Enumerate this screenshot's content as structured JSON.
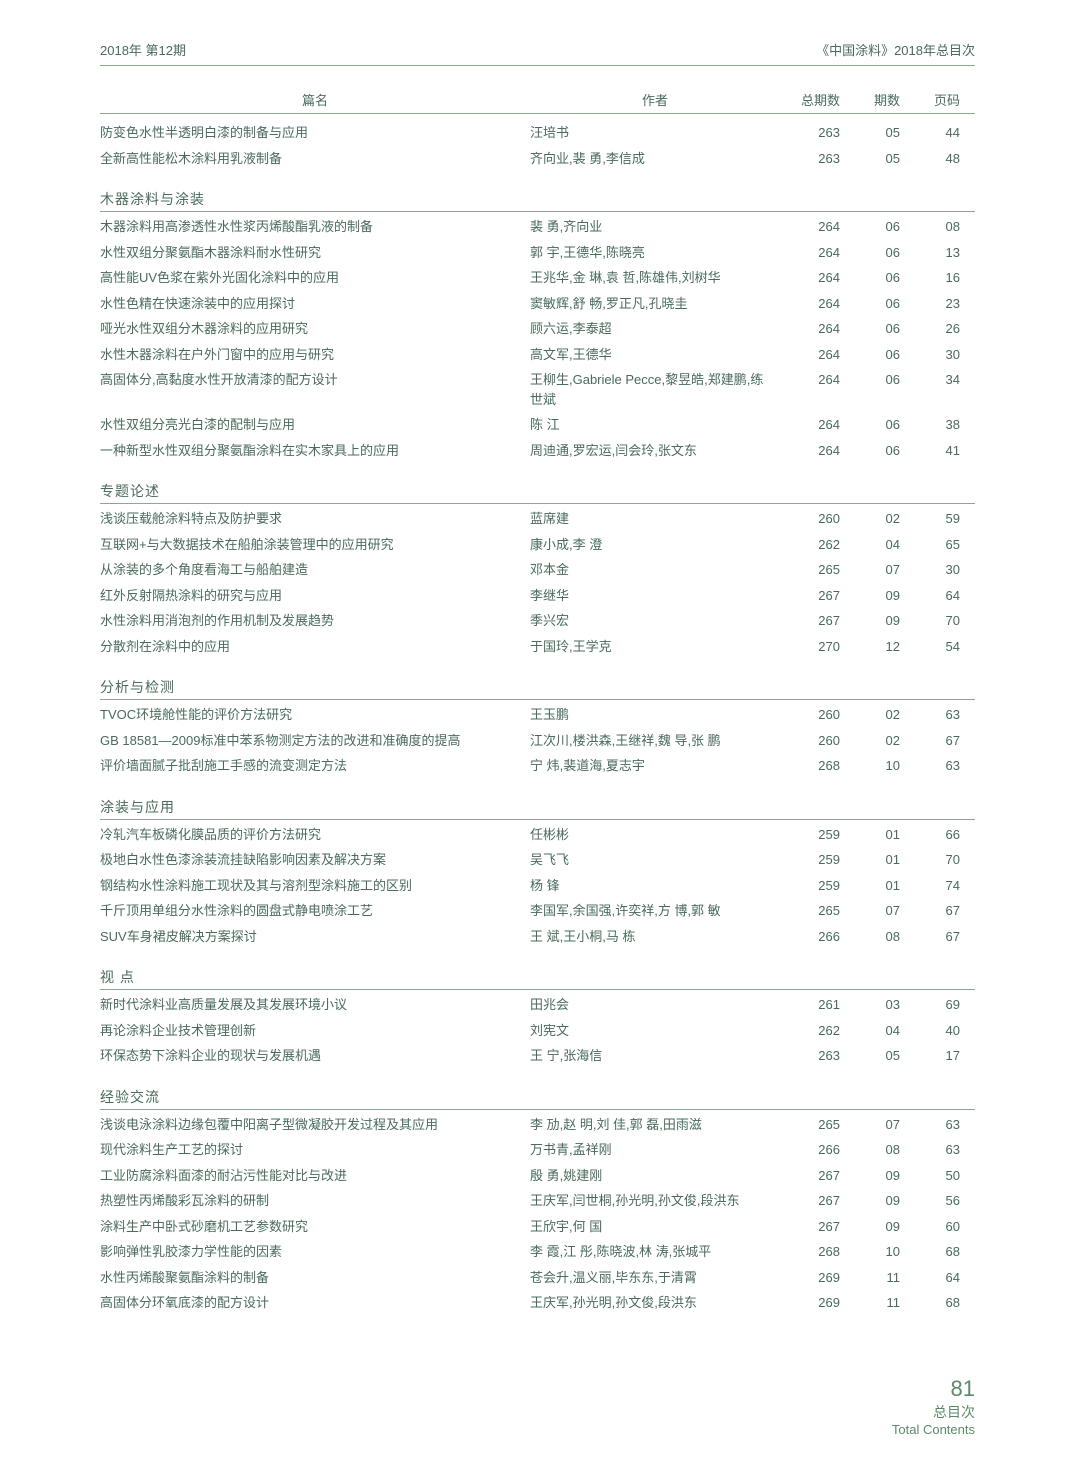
{
  "header": {
    "left": "2018年 第12期",
    "right": "《中国涂料》2018年总目次"
  },
  "columns": {
    "title": "篇名",
    "author": "作者",
    "total": "总期数",
    "issue": "期数",
    "page": "页码"
  },
  "sections": [
    {
      "name": null,
      "rows": [
        {
          "title": "防变色水性半透明白漆的制备与应用",
          "author": "汪培书",
          "total": "263",
          "issue": "05",
          "page": "44"
        },
        {
          "title": "全新高性能松木涂料用乳液制备",
          "author": "齐向业,裴 勇,李信成",
          "total": "263",
          "issue": "05",
          "page": "48"
        }
      ]
    },
    {
      "name": "木器涂料与涂装",
      "rows": [
        {
          "title": "木器涂料用高渗透性水性浆丙烯酸酯乳液的制备",
          "author": "裴 勇,齐向业",
          "total": "264",
          "issue": "06",
          "page": "08"
        },
        {
          "title": "水性双组分聚氨酯木器涂料耐水性研究",
          "author": "郭 宇,王德华,陈晓亮",
          "total": "264",
          "issue": "06",
          "page": "13"
        },
        {
          "title": "高性能UV色浆在紫外光固化涂料中的应用",
          "author": "王兆华,金 琳,袁 哲,陈雄伟,刘树华",
          "total": "264",
          "issue": "06",
          "page": "16"
        },
        {
          "title": "水性色精在快速涂装中的应用探讨",
          "author": "窦敏辉,舒 畅,罗正凡,孔晓圭",
          "total": "264",
          "issue": "06",
          "page": "23"
        },
        {
          "title": "哑光水性双组分木器涂料的应用研究",
          "author": "顾六运,李泰超",
          "total": "264",
          "issue": "06",
          "page": "26"
        },
        {
          "title": "水性木器涂料在户外门窗中的应用与研究",
          "author": "高文军,王德华",
          "total": "264",
          "issue": "06",
          "page": "30"
        },
        {
          "title": "高固体分,高黏度水性开放清漆的配方设计",
          "author": "王柳生,Gabriele Pecce,黎昱皓,郑建鹏,练世斌",
          "total": "264",
          "issue": "06",
          "page": "34"
        },
        {
          "title": "水性双组分亮光白漆的配制与应用",
          "author": "陈 江",
          "total": "264",
          "issue": "06",
          "page": "38"
        },
        {
          "title": "一种新型水性双组分聚氨酯涂料在实木家具上的应用",
          "author": "周迪通,罗宏运,闫会玲,张文东",
          "total": "264",
          "issue": "06",
          "page": "41"
        }
      ]
    },
    {
      "name": "专题论述",
      "rows": [
        {
          "title": "浅谈压载舱涂料特点及防护要求",
          "author": "蓝席建",
          "total": "260",
          "issue": "02",
          "page": "59"
        },
        {
          "title": "互联网+与大数据技术在船舶涂装管理中的应用研究",
          "author": "康小成,李 澄",
          "total": "262",
          "issue": "04",
          "page": "65"
        },
        {
          "title": "从涂装的多个角度看海工与船舶建造",
          "author": "邓本金",
          "total": "265",
          "issue": "07",
          "page": "30"
        },
        {
          "title": "红外反射隔热涂料的研究与应用",
          "author": "李继华",
          "total": "267",
          "issue": "09",
          "page": "64"
        },
        {
          "title": "水性涂料用消泡剂的作用机制及发展趋势",
          "author": "季兴宏",
          "total": "267",
          "issue": "09",
          "page": "70"
        },
        {
          "title": "分散剂在涂料中的应用",
          "author": "于国玲,王学克",
          "total": "270",
          "issue": "12",
          "page": "54"
        }
      ]
    },
    {
      "name": "分析与检测",
      "rows": [
        {
          "title": "TVOC环境舱性能的评价方法研究",
          "author": "王玉鹏",
          "total": "260",
          "issue": "02",
          "page": "63"
        },
        {
          "title": "GB 18581—2009标准中苯系物测定方法的改进和准确度的提高",
          "author": "江次川,楼洪森,王继祥,魏 导,张 鹏",
          "total": "260",
          "issue": "02",
          "page": "67"
        },
        {
          "title": "评价墙面腻子批刮施工手感的流变测定方法",
          "author": "宁 炜,裴道海,夏志宇",
          "total": "268",
          "issue": "10",
          "page": "63"
        }
      ]
    },
    {
      "name": "涂装与应用",
      "rows": [
        {
          "title": "冷轧汽车板磷化膜品质的评价方法研究",
          "author": "任彬彬",
          "total": "259",
          "issue": "01",
          "page": "66"
        },
        {
          "title": "极地白水性色漆涂装流挂缺陷影响因素及解决方案",
          "author": "吴飞飞",
          "total": "259",
          "issue": "01",
          "page": "70"
        },
        {
          "title": "钢结构水性涂料施工现状及其与溶剂型涂料施工的区别",
          "author": "杨 锋",
          "total": "259",
          "issue": "01",
          "page": "74"
        },
        {
          "title": "千斤顶用单组分水性涂料的圆盘式静电喷涂工艺",
          "author": "李国军,余国强,许奕祥,方 博,郭 敏",
          "total": "265",
          "issue": "07",
          "page": "67"
        },
        {
          "title": "SUV车身裙皮解决方案探讨",
          "author": "王 斌,王小桐,马 栋",
          "total": "266",
          "issue": "08",
          "page": "67"
        }
      ]
    },
    {
      "name": "视 点",
      "rows": [
        {
          "title": "新时代涂料业高质量发展及其发展环境小议",
          "author": "田兆会",
          "total": "261",
          "issue": "03",
          "page": "69"
        },
        {
          "title": "再论涂料企业技术管理创新",
          "author": "刘宪文",
          "total": "262",
          "issue": "04",
          "page": "40"
        },
        {
          "title": "环保态势下涂料企业的现状与发展机遇",
          "author": "王 宁,张海信",
          "total": "263",
          "issue": "05",
          "page": "17"
        }
      ]
    },
    {
      "name": "经验交流",
      "rows": [
        {
          "title": "浅谈电泳涂料边缘包覆中阳离子型微凝胶开发过程及其应用",
          "author": "李 劢,赵 明,刘 佳,郭 磊,田雨滋",
          "total": "265",
          "issue": "07",
          "page": "63"
        },
        {
          "title": "现代涂料生产工艺的探讨",
          "author": "万书青,孟祥刚",
          "total": "266",
          "issue": "08",
          "page": "63"
        },
        {
          "title": "工业防腐涂料面漆的耐沾污性能对比与改进",
          "author": "殷 勇,姚建刚",
          "total": "267",
          "issue": "09",
          "page": "50"
        },
        {
          "title": "热塑性丙烯酸彩瓦涂料的研制",
          "author": "王庆军,闫世桐,孙光明,孙文俊,段洪东",
          "total": "267",
          "issue": "09",
          "page": "56"
        },
        {
          "title": "涂料生产中卧式砂磨机工艺参数研究",
          "author": "王欣宇,何 国",
          "total": "267",
          "issue": "09",
          "page": "60"
        },
        {
          "title": "影响弹性乳胶漆力学性能的因素",
          "author": "李 霞,江 彤,陈晓波,林 涛,张城平",
          "total": "268",
          "issue": "10",
          "page": "68"
        },
        {
          "title": "水性丙烯酸聚氨酯涂料的制备",
          "author": "苍会升,温义丽,毕东东,于清霄",
          "total": "269",
          "issue": "11",
          "page": "64"
        },
        {
          "title": "高固体分环氧底漆的配方设计",
          "author": "王庆军,孙光明,孙文俊,段洪东",
          "total": "269",
          "issue": "11",
          "page": "68"
        }
      ]
    }
  ],
  "footer": {
    "pagenum": "81",
    "zh": "总目次",
    "en": "Total Contents"
  }
}
